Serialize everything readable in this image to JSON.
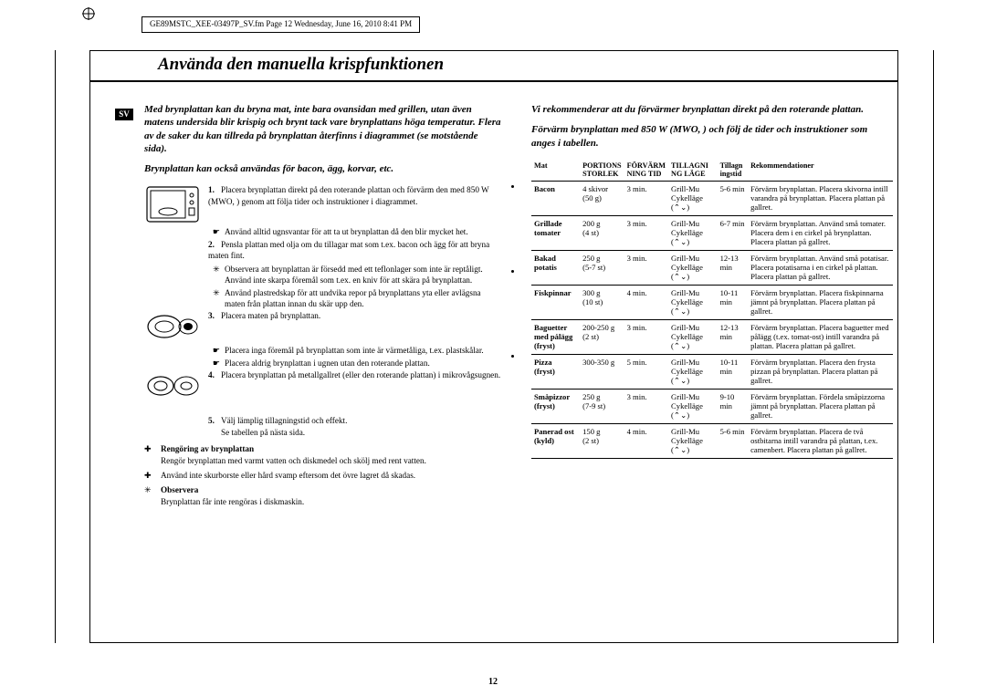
{
  "header": {
    "doc_info": "GE89MSTC_XEE-03497P_SV.fm  Page 12  Wednesday, June 16, 2010  8:41 PM"
  },
  "page": {
    "title": "Använda den manuella krispfunktionen",
    "lang_badge": "SV",
    "page_number": "12"
  },
  "left": {
    "intro1": "Med brynplattan kan du bryna mat, inte bara ovansidan med grillen, utan även matens undersida blir krispig och brynt tack vare brynplattans höga temperatur.  Flera av de saker du kan tillreda på brynplattan återfinns i diagrammet (se motstående sida).",
    "intro2": "Brynplattan kan också användas för bacon, ägg, korvar, etc.",
    "steps": {
      "s1": "Placera brynplattan direkt på den roterande plattan och förvärm den med 850 W (MWO, ) genom att följa tider och instruktioner i diagrammet.",
      "s1b": "Använd alltid ugnsvantar för att ta ut brynplattan då den blir mycket het.",
      "s2": "Pensla plattan med olja om du tillagar mat som t.ex. bacon och ägg för att bryna maten fint.",
      "s2b1": "Observera att brynplattan är försedd med ett teflonlager som inte är reptåligt. Använd inte skarpa föremål som t.ex. en kniv för att skära på brynplattan.",
      "s2b2": "Använd plastredskap för att undvika repor på brynplattans yta eller avlägsna maten från plattan innan du skär upp den.",
      "s3": "Placera maten på brynplattan.",
      "s3b1": "Placera inga föremål på brynplattan som inte är värmetåliga, t.ex. plastskålar.",
      "s3b2": "Placera aldrig brynplattan i ugnen utan den roterande plattan.",
      "s4": "Placera brynplattan på metallgallret (eller den roterande plattan) i mikrovågsugnen.",
      "s5": "Välj lämplig tillagningstid och effekt.",
      "s5b": "Se tabellen på nästa sida."
    },
    "notes": {
      "n1_title": "Rengöring av brynplattan",
      "n1_text": "Rengör brynplattan med varmt vatten och diskmedel och skölj med rent vatten.",
      "n2_text": "Använd inte skurborste eller hård svamp eftersom det övre lagret då skadas.",
      "n3_title": "Observera",
      "n3_text": "Brynplattan får inte rengöras i diskmaskin."
    }
  },
  "right": {
    "intro1": "Vi rekommenderar att du förvärmer brynplattan direkt på den roterande plattan.",
    "intro2": "Förvärm brynplattan med 850 W (MWO, ) och följ de tider och instruktioner som anges i tabellen.",
    "headers": {
      "c1": "Mat",
      "c2a": "PORTIONS",
      "c2b": "STORLEK",
      "c3a": "FÖRVÄRM",
      "c3b": "NING TID",
      "c4a": "TILLAGNI",
      "c4b": "NG LÄGE",
      "c5a": "Tillagn",
      "c5b": "ingstid",
      "c6": "Rekommendationer"
    },
    "rows": [
      {
        "food": "Bacon",
        "food2": "",
        "portion": "4 skivor",
        "portion2": "(50 g)",
        "warm": "3 min.",
        "mode": "Grill-Mu Cykelläge",
        "time": "5-6 min",
        "rec": "Förvärm brynplattan. Placera skivorna intill varandra på brynplattan. Placera plattan på gallret."
      },
      {
        "food": "Grillade",
        "food2": "tomater",
        "portion": "200 g",
        "portion2": "(4 st)",
        "warm": "3 min.",
        "mode": "Grill-Mu Cykelläge",
        "time": "6-7 min",
        "rec": "Förvärm brynplattan. Använd små tomater. Placera dem i en cirkel på brynplattan. Placera plattan på gallret."
      },
      {
        "food": "Bakad",
        "food2": "potatis",
        "portion": "250 g",
        "portion2": "(5-7 st)",
        "warm": "3 min.",
        "mode": "Grill-Mu Cykelläge",
        "time": "12-13 min",
        "rec": "Förvärm brynplattan. Använd små potatisar. Placera potatisarna i en cirkel på plattan. Placera plattan på gallret."
      },
      {
        "food": "Fiskpinnar",
        "food2": "",
        "portion": "300 g",
        "portion2": "(10 st)",
        "warm": "4 min.",
        "mode": "Grill-Mu Cykelläge",
        "time": "10-11 min",
        "rec": "Förvärm brynplattan. Placera fiskpinnarna jämnt på brynplattan. Placera plattan på gallret."
      },
      {
        "food": "Baguetter",
        "food2": "med pålägg (fryst)",
        "portion": "200-250 g",
        "portion2": "(2 st)",
        "warm": "3 min.",
        "mode": "Grill-Mu Cykelläge",
        "time": "12-13 min",
        "rec": "Förvärm brynplattan. Placera baguetter med pålägg (t.ex. tomat-ost) intill varandra på plattan. Placera plattan på gallret."
      },
      {
        "food": "Pizza",
        "food2": "(fryst)",
        "portion": "300-350 g",
        "portion2": "",
        "warm": "5 min.",
        "mode": "Grill-Mu Cykelläge",
        "time": "10-11 min",
        "rec": "Förvärm brynplattan. Placera den frysta pizzan på brynplattan. Placera plattan på gallret."
      },
      {
        "food": "Småpizzor",
        "food2": "(fryst)",
        "portion": "250 g",
        "portion2": "(7-9 st)",
        "warm": "3 min.",
        "mode": "Grill-Mu Cykelläge",
        "time": "9-10 min",
        "rec": "Förvärm brynplattan. Fördela småpizzorna jämnt på brynplattan. Placera plattan på gallret."
      },
      {
        "food": "Panerad ost",
        "food2": "(kyld)",
        "portion": "150 g",
        "portion2": "(2 st)",
        "warm": "4 min.",
        "mode": "Grill-Mu Cykelläge",
        "time": "5-6 min",
        "rec": "Förvärm brynplattan. Placera de två ostbitarna intill varandra på plattan, t.ex. camenbert. Placera plattan på gallret."
      }
    ]
  }
}
